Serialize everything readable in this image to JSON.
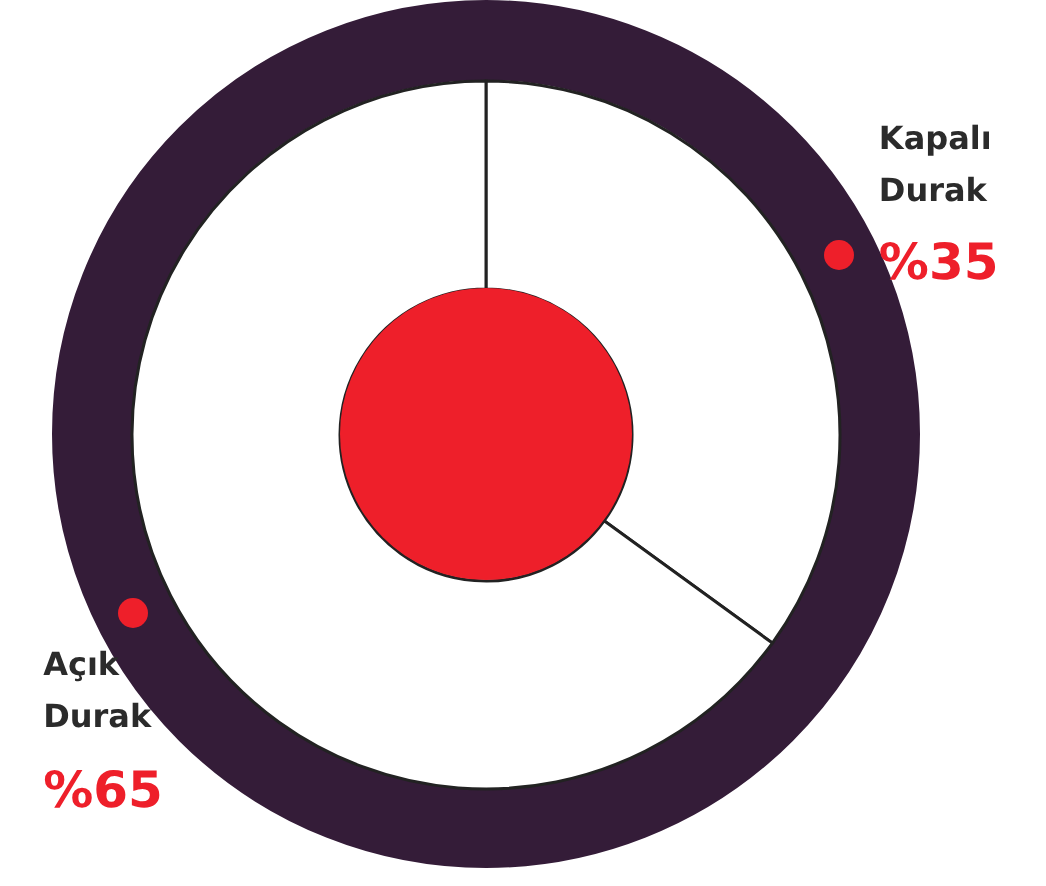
{
  "chart_data": {
    "type": "donut",
    "categories": [
      "Kapalı Durak",
      "Açık Durak"
    ],
    "values": [
      35,
      65
    ],
    "colors": [
      "#ffffff",
      "#ffffff"
    ],
    "value_labels": [
      "%35",
      "%65"
    ]
  }
}
